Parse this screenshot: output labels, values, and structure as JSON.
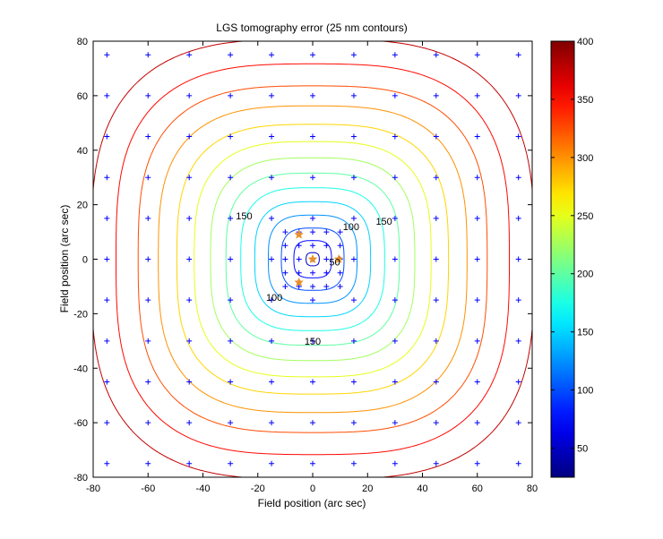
{
  "chart_data": {
    "type": "contour",
    "title": "LGS tomography error (25 nm contours)",
    "xlabel": "Field position (arc sec)",
    "ylabel": "Field position (arc sec)",
    "xlim": [
      -80,
      80
    ],
    "ylim": [
      -80,
      80
    ],
    "x_ticks": [
      -80,
      -60,
      -40,
      -20,
      0,
      20,
      40,
      60,
      80
    ],
    "y_ticks": [
      -80,
      -60,
      -40,
      -20,
      0,
      20,
      40,
      60,
      80
    ],
    "x_tick_labels": [
      "-80",
      "-60",
      "-40",
      "-20",
      "0",
      "20",
      "40",
      "60",
      "80"
    ],
    "y_tick_labels": [
      "-80",
      "-60",
      "-40",
      "-20",
      "0",
      "20",
      "40",
      "60",
      "80"
    ],
    "grid": false,
    "contour_step": 25,
    "contour_levels": [
      50,
      75,
      100,
      125,
      150,
      175,
      200,
      225,
      250,
      275,
      300,
      325,
      350,
      375
    ],
    "contour_label_positions": [
      {
        "text": "50",
        "level": 50,
        "x": 8,
        "y": -1
      },
      {
        "text": "100",
        "level": 100,
        "x": 14,
        "y": 12
      },
      {
        "text": "100",
        "level": 100,
        "x": -14,
        "y": -14
      },
      {
        "text": "150",
        "level": 150,
        "x": -25,
        "y": 16
      },
      {
        "text": "150",
        "level": 150,
        "x": 26,
        "y": 14
      },
      {
        "text": "150",
        "level": 150,
        "x": 0,
        "y": -30
      }
    ],
    "colorbar": {
      "range": [
        25,
        400
      ],
      "ticks": [
        50,
        100,
        150,
        200,
        250,
        300,
        350,
        400
      ],
      "tick_labels": [
        "50",
        "100",
        "150",
        "200",
        "250",
        "300",
        "350",
        "400"
      ],
      "colormap": "jet"
    },
    "evaluation_grid": {
      "outer_coords": [
        -75,
        -60,
        -45,
        -30,
        -15,
        0,
        15,
        30,
        45,
        60,
        75
      ],
      "inner_coords": [
        -10,
        -5,
        0,
        5,
        10
      ],
      "marker": "+",
      "color": "#0000ff"
    },
    "guide_stars": {
      "marker": "star",
      "color": "#e8902a",
      "points": [
        {
          "x": 0,
          "y": 0
        },
        {
          "x": 9.5,
          "y": 0
        },
        {
          "x": -5,
          "y": 9
        },
        {
          "x": -5,
          "y": -8.5
        }
      ]
    }
  }
}
